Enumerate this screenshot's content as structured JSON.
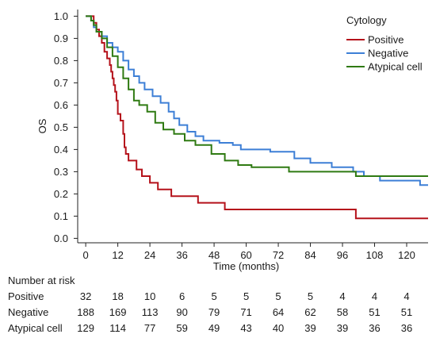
{
  "chart_data": {
    "type": "line",
    "step": true,
    "xlabel": "Time (months)",
    "ylabel": "OS",
    "xlim": [
      -3,
      128
    ],
    "ylim": [
      -0.02,
      1.03
    ],
    "xticks": [
      0,
      12,
      24,
      36,
      48,
      60,
      72,
      84,
      96,
      108,
      120
    ],
    "yticks": [
      0.0,
      0.1,
      0.2,
      0.3,
      0.4,
      0.5,
      0.6,
      0.7,
      0.8,
      0.9,
      1.0
    ],
    "legend": {
      "title": "Cytology",
      "position": "top-right"
    },
    "series": [
      {
        "name": "Positive",
        "color": "#b5121b",
        "points": [
          [
            0,
            1.0
          ],
          [
            3,
            0.97
          ],
          [
            4,
            0.94
          ],
          [
            5,
            0.91
          ],
          [
            6,
            0.88
          ],
          [
            7,
            0.84
          ],
          [
            8,
            0.81
          ],
          [
            9,
            0.78
          ],
          [
            9.5,
            0.75
          ],
          [
            10,
            0.72
          ],
          [
            10.5,
            0.69
          ],
          [
            11,
            0.66
          ],
          [
            11.5,
            0.62
          ],
          [
            12,
            0.56
          ],
          [
            13,
            0.53
          ],
          [
            14,
            0.47
          ],
          [
            14.5,
            0.41
          ],
          [
            15,
            0.38
          ],
          [
            16,
            0.35
          ],
          [
            19,
            0.31
          ],
          [
            21,
            0.28
          ],
          [
            24,
            0.25
          ],
          [
            27,
            0.22
          ],
          [
            32,
            0.19
          ],
          [
            42,
            0.16
          ],
          [
            52,
            0.13
          ],
          [
            101,
            0.09
          ],
          [
            128,
            0.09
          ]
        ]
      },
      {
        "name": "Negative",
        "color": "#3d7fd6",
        "points": [
          [
            0,
            1.0
          ],
          [
            2,
            0.98
          ],
          [
            3,
            0.95
          ],
          [
            4,
            0.93
          ],
          [
            6,
            0.91
          ],
          [
            8,
            0.88
          ],
          [
            10,
            0.86
          ],
          [
            12,
            0.84
          ],
          [
            14,
            0.8
          ],
          [
            16,
            0.76
          ],
          [
            18,
            0.73
          ],
          [
            20,
            0.7
          ],
          [
            22,
            0.67
          ],
          [
            25,
            0.64
          ],
          [
            28,
            0.61
          ],
          [
            31,
            0.57
          ],
          [
            33,
            0.54
          ],
          [
            35,
            0.51
          ],
          [
            38,
            0.48
          ],
          [
            41,
            0.46
          ],
          [
            44,
            0.44
          ],
          [
            50,
            0.43
          ],
          [
            55,
            0.42
          ],
          [
            58,
            0.4
          ],
          [
            69,
            0.39
          ],
          [
            78,
            0.36
          ],
          [
            84,
            0.34
          ],
          [
            92,
            0.32
          ],
          [
            100,
            0.3
          ],
          [
            104,
            0.28
          ],
          [
            110,
            0.26
          ],
          [
            125,
            0.24
          ],
          [
            128,
            0.24
          ]
        ]
      },
      {
        "name": "Atypical cell",
        "color": "#2f7a12",
        "points": [
          [
            0,
            1.0
          ],
          [
            2,
            0.98
          ],
          [
            3,
            0.96
          ],
          [
            4,
            0.93
          ],
          [
            6,
            0.9
          ],
          [
            8,
            0.86
          ],
          [
            10,
            0.82
          ],
          [
            12,
            0.77
          ],
          [
            14,
            0.72
          ],
          [
            16,
            0.67
          ],
          [
            18,
            0.62
          ],
          [
            20,
            0.6
          ],
          [
            23,
            0.57
          ],
          [
            26,
            0.52
          ],
          [
            29,
            0.49
          ],
          [
            33,
            0.47
          ],
          [
            37,
            0.44
          ],
          [
            41,
            0.42
          ],
          [
            47,
            0.38
          ],
          [
            52,
            0.35
          ],
          [
            57,
            0.33
          ],
          [
            62,
            0.32
          ],
          [
            76,
            0.3
          ],
          [
            98,
            0.3
          ],
          [
            101,
            0.28
          ],
          [
            128,
            0.28
          ]
        ]
      }
    ]
  },
  "risk_table": {
    "title": "Number at risk",
    "rows": [
      {
        "label": "Positive",
        "values": [
          32,
          18,
          10,
          6,
          5,
          5,
          5,
          5,
          4,
          4,
          4
        ]
      },
      {
        "label": "Negative",
        "values": [
          188,
          169,
          113,
          90,
          79,
          71,
          64,
          62,
          58,
          51,
          51
        ]
      },
      {
        "label": "Atypical cell",
        "values": [
          129,
          114,
          77,
          59,
          49,
          43,
          40,
          39,
          39,
          36,
          36
        ]
      }
    ]
  }
}
